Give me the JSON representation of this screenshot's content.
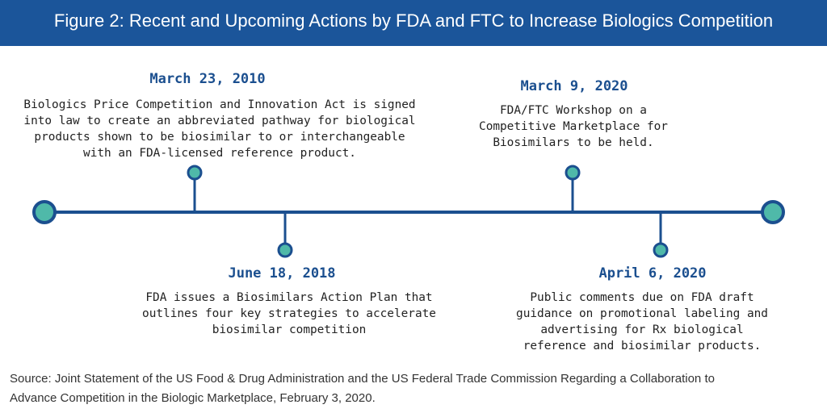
{
  "header": {
    "title": "Figure 2: Recent and Upcoming Actions by FDA and FTC to Increase Biologics Competition"
  },
  "events": [
    {
      "date": "March 23, 2010",
      "lines": [
        "Biologics Price Competition and Innovation Act is signed",
        "into law to create an abbreviated pathway for biological",
        "products shown to be biosimilar to or interchangeable",
        "with an FDA-licensed reference product."
      ]
    },
    {
      "date": "June 18, 2018",
      "lines": [
        "FDA issues a Biosimilars Action Plan that",
        "outlines four key strategies to accelerate",
        "biosimilar competition"
      ]
    },
    {
      "date": "March 9, 2020",
      "lines": [
        "FDA/FTC Workshop on a",
        "Competitive Marketplace for",
        "Biosimilars to be held."
      ]
    },
    {
      "date": "April 6, 2020",
      "lines": [
        "Public comments due on FDA draft",
        "guidance on promotional labeling and",
        "advertising for Rx biological",
        "reference and biosimilar products."
      ]
    }
  ],
  "source": [
    "Source: Joint Statement of the US Food & Drug Administration and the US Federal Trade Commission Regarding a Collaboration to",
    "Advance Competition in the Biologic Marketplace, February 3, 2020."
  ]
}
